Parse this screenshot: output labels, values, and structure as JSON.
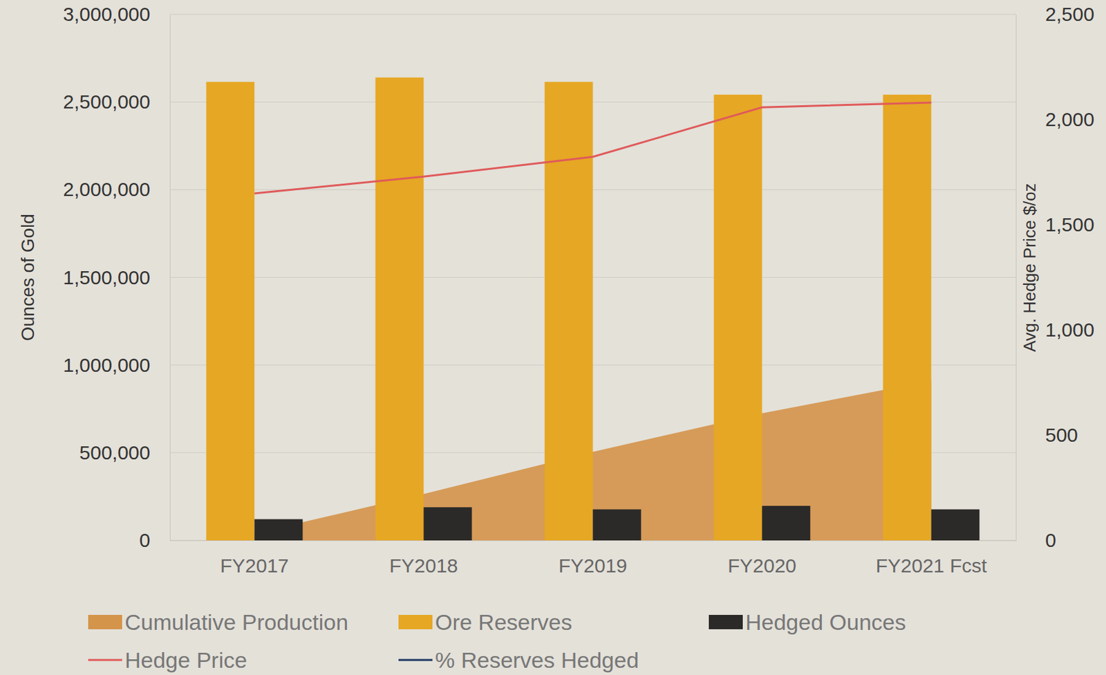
{
  "chart_data": {
    "type": "bar",
    "categories": [
      "FY2017",
      "FY2018",
      "FY2019",
      "FY2020",
      "FY2021 Fcst"
    ],
    "y_label": "Ounces of Gold",
    "y2_label": "Avg. Hedge Price $/oz",
    "ylim": [
      0,
      3000000
    ],
    "yticks": [
      0,
      {
        "value": 500000,
        "label": "500,000"
      },
      {
        "value": 1000000,
        "label": "1,000,000"
      },
      {
        "value": 1500000,
        "label": "1,500,000"
      },
      {
        "value": 2000000,
        "label": "2,000,000"
      },
      {
        "value": 2500000,
        "label": "2,500,000"
      },
      {
        "value": 3000000,
        "label": "3,000,000"
      }
    ],
    "y2lim": [
      0,
      2500
    ],
    "y2ticks": [
      0,
      500,
      {
        "value": 1000,
        "label": "1,000"
      },
      {
        "value": 1500,
        "label": "1,500"
      },
      {
        "value": 2000,
        "label": "2,000"
      },
      {
        "value": 2500,
        "label": "2,500"
      }
    ],
    "grid": true,
    "legend": "bottom",
    "series": [
      {
        "name": "Cumulative Production",
        "type": "area",
        "color": "#d4944a",
        "values": [
          40000,
          265000,
          505000,
          725000,
          910000
        ]
      },
      {
        "name": "Ore Reserves",
        "type": "bar",
        "color": "#e6a724",
        "values": [
          2615000,
          2640000,
          2615000,
          2542000,
          2542000
        ]
      },
      {
        "name": "Hedged Ounces",
        "type": "bar",
        "color": "#2b2a28",
        "values": [
          121000,
          189000,
          177000,
          197000,
          177000
        ]
      },
      {
        "name": "Hedge Price",
        "type": "line",
        "axis": "y2",
        "color": "#e05a5a",
        "values": [
          1649,
          1729,
          1823,
          2058,
          2081
        ]
      },
      {
        "name": "% Reserves Hedged",
        "type": "line",
        "color": "#1f3864",
        "values": [
          null,
          null,
          null,
          null,
          null
        ]
      }
    ]
  }
}
